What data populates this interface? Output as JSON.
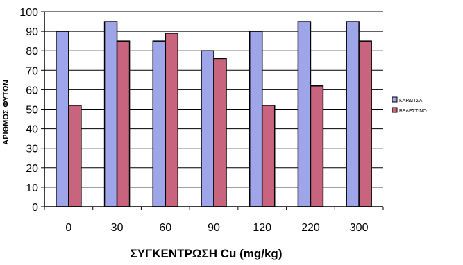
{
  "chart_data": {
    "type": "bar",
    "title": "",
    "xlabel": "ΣΥΓΚΕΝΤΡΩΣΗ Cu (mg/kg)",
    "ylabel": "ΑΡΙΘΜΟΣ ΦΥΤΩΝ",
    "categories": [
      "0",
      "30",
      "60",
      "90",
      "120",
      "220",
      "300"
    ],
    "series": [
      {
        "name": "ΚΑΡΔΙΤΣΑ",
        "values": [
          90,
          95,
          85,
          80,
          90,
          95,
          95
        ],
        "color": "#9ea5e8"
      },
      {
        "name": "ΒΕΛΕΣΤΙΝΟ",
        "values": [
          52,
          85,
          89,
          76,
          52,
          62,
          85
        ],
        "color": "#c9647e"
      }
    ],
    "ylim": [
      0,
      100
    ],
    "yticks": [
      "0",
      "10",
      "20",
      "30",
      "40",
      "50",
      "60",
      "70",
      "80",
      "90",
      "100"
    ],
    "grid": true,
    "legend_position": "right"
  }
}
